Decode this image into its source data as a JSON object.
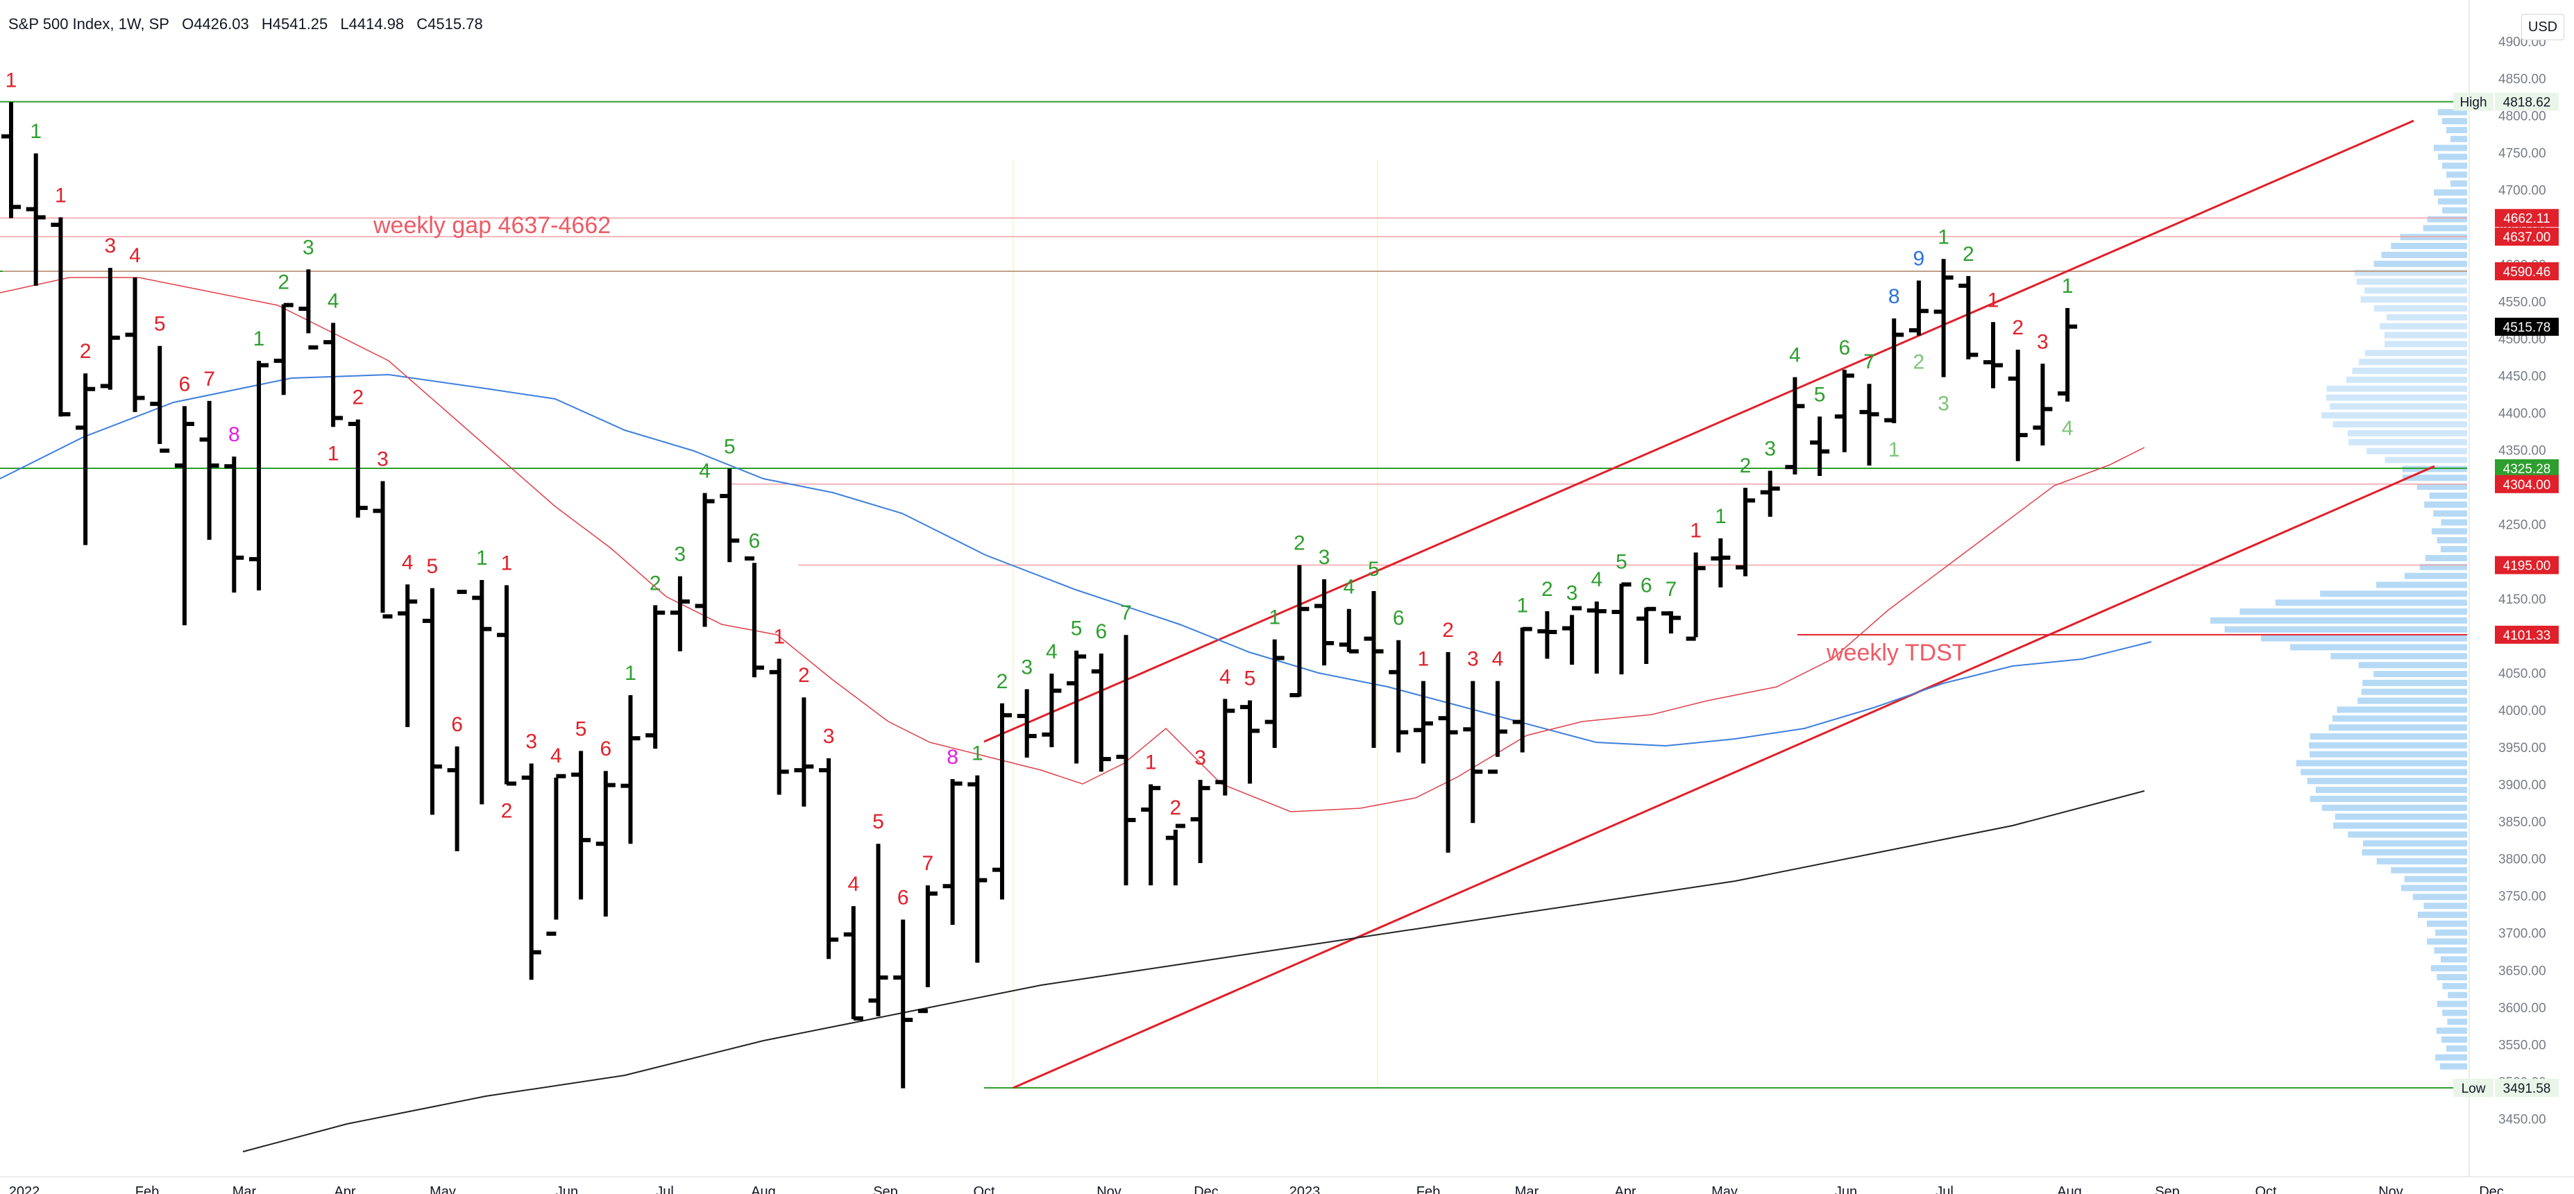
{
  "header": {
    "symbol": "S&P 500 Index, 1W, SP",
    "open": "O4426.03",
    "high": "H4541.25",
    "low": "L4414.98",
    "close": "C4515.78"
  },
  "currency_button": "USD",
  "chart_data": {
    "type": "ohlc",
    "title": "S&P 500 Index, 1W, SP",
    "ylim": [
      3400,
      4900
    ],
    "y_ticks": [
      3450,
      3500,
      3550,
      3600,
      3650,
      3700,
      3750,
      3800,
      3850,
      3900,
      3950,
      4000,
      4050,
      4100,
      4150,
      4200,
      4250,
      4300,
      4350,
      4400,
      4450,
      4500,
      4550,
      4600,
      4650,
      4700,
      4750,
      4800,
      4850,
      4900
    ],
    "x_ticks": [
      "2022",
      "Feb",
      "Mar",
      "Apr",
      "May",
      "Jun",
      "Jul",
      "Aug",
      "Sep",
      "Oct",
      "Nov",
      "Dec",
      "2023",
      "Feb",
      "Mar",
      "Apr",
      "May",
      "Jun",
      "Jul",
      "Aug",
      "Sep",
      "Oct",
      "Nov",
      "Dec"
    ],
    "bars": [
      [
        4772,
        4818,
        4662,
        4677
      ],
      [
        4674,
        4749,
        4571,
        4663
      ],
      [
        4653,
        4663,
        4395,
        4398
      ],
      [
        4380,
        4453,
        4222,
        4432
      ],
      [
        4436,
        4595,
        4431,
        4501
      ],
      [
        4505,
        4582,
        4401,
        4420
      ],
      [
        4412,
        4490,
        4358,
        4349
      ],
      [
        4329,
        4409,
        4114,
        4385
      ],
      [
        4364,
        4416,
        4229,
        4329
      ],
      [
        4328,
        4341,
        4158,
        4205
      ],
      [
        4203,
        4470,
        4161,
        4464
      ],
      [
        4470,
        4546,
        4424,
        4545
      ],
      [
        4540,
        4593,
        4507,
        4488
      ],
      [
        4495,
        4521,
        4381,
        4393
      ],
      [
        4385,
        4391,
        4259,
        4272
      ],
      [
        4268,
        4308,
        4131,
        4126
      ],
      [
        4130,
        4169,
        3977,
        4146
      ],
      [
        4120,
        4164,
        3859,
        3924
      ],
      [
        3919,
        3951,
        3810,
        4159
      ],
      [
        4151,
        4175,
        3873,
        4109
      ],
      [
        4101,
        4168,
        3900,
        3901
      ],
      [
        3909,
        3928,
        3637,
        3674
      ],
      [
        3699,
        3909,
        3718,
        3911
      ],
      [
        3913,
        3945,
        3745,
        3825
      ],
      [
        3820,
        3918,
        3722,
        3899
      ],
      [
        3898,
        4020,
        3820,
        3962
      ],
      [
        3966,
        4141,
        3948,
        4131
      ],
      [
        4131,
        4180,
        4079,
        4146
      ],
      [
        4140,
        4292,
        4112,
        4281
      ],
      [
        4288,
        4325,
        4199,
        4228
      ],
      [
        4204,
        4198,
        4044,
        4057
      ],
      [
        4051,
        4069,
        3886,
        3917
      ],
      [
        3919,
        4017,
        3870,
        3924
      ],
      [
        3919,
        3935,
        3665,
        3691
      ],
      [
        3698,
        3736,
        3584,
        3585
      ],
      [
        3609,
        3820,
        3588,
        3640
      ],
      [
        3640,
        3718,
        3491,
        3583
      ],
      [
        3595,
        3764,
        3627,
        3753
      ],
      [
        3763,
        3907,
        3711,
        3901
      ],
      [
        3900,
        3912,
        3660,
        3771
      ],
      [
        3785,
        4009,
        3745,
        3993
      ],
      [
        3992,
        4028,
        3936,
        3965
      ],
      [
        3967,
        4049,
        3950,
        4026
      ],
      [
        4036,
        4080,
        3928,
        4072
      ],
      [
        4052,
        4076,
        3917,
        3934
      ],
      [
        3937,
        4101,
        3764,
        3852
      ],
      [
        3866,
        3900,
        3764,
        3895
      ],
      [
        3828,
        3839,
        3764,
        3844
      ],
      [
        3853,
        3906,
        3794,
        3895
      ],
      [
        3903,
        4015,
        3885,
        3999
      ],
      [
        4004,
        4013,
        3901,
        3972
      ],
      [
        3984,
        4095,
        3949,
        4070
      ],
      [
        4020,
        4195,
        4018,
        4136
      ],
      [
        4140,
        4176,
        4060,
        4090
      ],
      [
        4088,
        4136,
        4078,
        4079
      ],
      [
        4096,
        4160,
        3949,
        4079
      ],
      [
        4051,
        4094,
        3943,
        3970
      ],
      [
        3973,
        4039,
        3928,
        3982
      ],
      [
        3989,
        4078,
        3808,
        3970
      ],
      [
        3974,
        4039,
        3848,
        3917
      ],
      [
        3917,
        4039,
        3937,
        3971
      ],
      [
        3984,
        4111,
        3943,
        4109
      ],
      [
        4106,
        4133,
        4069,
        4105
      ],
      [
        4110,
        4128,
        4061,
        4137
      ],
      [
        4134,
        4146,
        4049,
        4133
      ],
      [
        4132,
        4170,
        4048,
        4169
      ],
      [
        4123,
        4138,
        4062,
        4136
      ],
      [
        4130,
        4133,
        4103,
        4124
      ],
      [
        4096,
        4212,
        4098,
        4191
      ],
      [
        4204,
        4231,
        4165,
        4205
      ],
      [
        4192,
        4299,
        4180,
        4282
      ],
      [
        4293,
        4322,
        4260,
        4298
      ],
      [
        4327,
        4448,
        4317,
        4409
      ],
      [
        4360,
        4395,
        4315,
        4348
      ],
      [
        4395,
        4458,
        4347,
        4450
      ],
      [
        4401,
        4439,
        4329,
        4398
      ],
      [
        4390,
        4527,
        4386,
        4505
      ],
      [
        4511,
        4578,
        4504,
        4537
      ],
      [
        4536,
        4607,
        4448,
        4582
      ],
      [
        4571,
        4584,
        4472,
        4478
      ],
      [
        4468,
        4522,
        4433,
        4464
      ],
      [
        4446,
        4485,
        4335,
        4370
      ],
      [
        4380,
        4466,
        4356,
        4405
      ],
      [
        4426,
        4541,
        4415,
        4516
      ]
    ],
    "series": [
      {
        "name": "",
        "values": []
      }
    ],
    "price_labels": [
      {
        "label": "High",
        "value": 4818.62
      },
      {
        "label": "",
        "value": 4662.11
      },
      {
        "label": "",
        "value": 4637.0
      },
      {
        "label": "",
        "value": 4590.46
      },
      {
        "label": "",
        "value": 4515.78
      },
      {
        "label": "",
        "value": 4325.28
      },
      {
        "label": "",
        "value": 4304.0
      },
      {
        "label": "",
        "value": 4195.0
      },
      {
        "label": "",
        "value": 4101.33
      },
      {
        "label": "Low",
        "value": 3491.58
      }
    ],
    "annotations": [
      {
        "text": "weekly gap 4637-4662"
      },
      {
        "text": "weekly TDST"
      }
    ],
    "td_counts": [
      {
        "bar": 0,
        "above": true,
        "text": "1",
        "c": "red"
      },
      {
        "bar": 1,
        "above": true,
        "text": "1",
        "c": "green"
      },
      {
        "bar": 2,
        "above": true,
        "text": "1",
        "c": "red"
      },
      {
        "bar": 3,
        "above": true,
        "text": "2",
        "c": "red"
      },
      {
        "bar": 4,
        "above": true,
        "text": "3",
        "c": "red"
      },
      {
        "bar": 5,
        "above": true,
        "text": "4",
        "c": "red"
      },
      {
        "bar": 6,
        "above": true,
        "text": "5",
        "c": "red"
      },
      {
        "bar": 7,
        "above": true,
        "text": "6",
        "c": "red"
      },
      {
        "bar": 8,
        "above": true,
        "text": "7",
        "c": "red"
      },
      {
        "bar": 9,
        "above": true,
        "text": "8",
        "c": "magenta"
      },
      {
        "bar": 10,
        "above": true,
        "text": "1",
        "c": "green"
      },
      {
        "bar": 11,
        "above": true,
        "text": "2",
        "c": "green"
      },
      {
        "bar": 12,
        "above": true,
        "text": "3",
        "c": "green"
      },
      {
        "bar": 13,
        "above": true,
        "text": "4",
        "c": "green"
      },
      {
        "bar": 13,
        "above": false,
        "text": "1",
        "c": "red"
      },
      {
        "bar": 14,
        "above": true,
        "text": "2",
        "c": "red"
      },
      {
        "bar": 15,
        "above": true,
        "text": "3",
        "c": "red"
      },
      {
        "bar": 16,
        "above": true,
        "text": "4",
        "c": "red"
      },
      {
        "bar": 17,
        "above": true,
        "text": "5",
        "c": "red"
      },
      {
        "bar": 18,
        "above": true,
        "text": "6",
        "c": "red"
      },
      {
        "bar": 19,
        "above": true,
        "text": "1",
        "c": "green"
      },
      {
        "bar": 20,
        "above": true,
        "text": "1",
        "c": "red"
      },
      {
        "bar": 20,
        "above": false,
        "text": "2",
        "c": "red"
      },
      {
        "bar": 21,
        "above": true,
        "text": "3",
        "c": "red"
      },
      {
        "bar": 22,
        "above": true,
        "text": "4",
        "c": "red"
      },
      {
        "bar": 23,
        "above": true,
        "text": "5",
        "c": "red"
      },
      {
        "bar": 24,
        "above": true,
        "text": "6",
        "c": "red"
      },
      {
        "bar": 25,
        "above": true,
        "text": "1",
        "c": "green"
      },
      {
        "bar": 26,
        "above": true,
        "text": "2",
        "c": "green"
      },
      {
        "bar": 27,
        "above": true,
        "text": "3",
        "c": "green"
      },
      {
        "bar": 28,
        "above": true,
        "text": "4",
        "c": "green"
      },
      {
        "bar": 29,
        "above": true,
        "text": "5",
        "c": "green"
      },
      {
        "bar": 30,
        "above": true,
        "text": "6",
        "c": "green"
      },
      {
        "bar": 31,
        "above": true,
        "text": "1",
        "c": "red"
      },
      {
        "bar": 32,
        "above": true,
        "text": "2",
        "c": "red"
      },
      {
        "bar": 33,
        "above": true,
        "text": "3",
        "c": "red"
      },
      {
        "bar": 34,
        "above": true,
        "text": "4",
        "c": "red"
      },
      {
        "bar": 35,
        "above": true,
        "text": "5",
        "c": "red"
      },
      {
        "bar": 36,
        "above": true,
        "text": "6",
        "c": "red"
      },
      {
        "bar": 37,
        "above": true,
        "text": "7",
        "c": "red"
      },
      {
        "bar": 38,
        "above": true,
        "text": "8",
        "c": "magenta"
      },
      {
        "bar": 39,
        "above": true,
        "text": "1",
        "c": "green"
      },
      {
        "bar": 40,
        "above": true,
        "text": "2",
        "c": "green"
      },
      {
        "bar": 41,
        "above": true,
        "text": "3",
        "c": "green"
      },
      {
        "bar": 42,
        "above": true,
        "text": "4",
        "c": "green"
      },
      {
        "bar": 43,
        "above": true,
        "text": "5",
        "c": "green"
      },
      {
        "bar": 44,
        "above": true,
        "text": "6",
        "c": "green"
      },
      {
        "bar": 45,
        "above": true,
        "text": "7",
        "c": "green"
      },
      {
        "bar": 46,
        "above": true,
        "text": "1",
        "c": "red"
      },
      {
        "bar": 47,
        "above": true,
        "text": "2",
        "c": "red"
      },
      {
        "bar": 48,
        "above": true,
        "text": "3",
        "c": "red"
      },
      {
        "bar": 49,
        "above": true,
        "text": "4",
        "c": "red"
      },
      {
        "bar": 50,
        "above": true,
        "text": "5",
        "c": "red"
      },
      {
        "bar": 51,
        "above": true,
        "text": "1",
        "c": "green"
      },
      {
        "bar": 52,
        "above": true,
        "text": "2",
        "c": "green"
      },
      {
        "bar": 53,
        "above": true,
        "text": "3",
        "c": "green"
      },
      {
        "bar": 54,
        "above": true,
        "text": "4",
        "c": "green"
      },
      {
        "bar": 55,
        "above": true,
        "text": "5",
        "c": "green"
      },
      {
        "bar": 56,
        "above": true,
        "text": "6",
        "c": "green"
      },
      {
        "bar": 57,
        "above": true,
        "text": "1",
        "c": "red"
      },
      {
        "bar": 58,
        "above": true,
        "text": "2",
        "c": "red"
      },
      {
        "bar": 59,
        "above": true,
        "text": "3",
        "c": "red"
      },
      {
        "bar": 60,
        "above": true,
        "text": "4",
        "c": "red"
      },
      {
        "bar": 61,
        "above": true,
        "text": "1",
        "c": "green"
      },
      {
        "bar": 62,
        "above": true,
        "text": "2",
        "c": "green"
      },
      {
        "bar": 63,
        "above": true,
        "text": "3",
        "c": "green"
      },
      {
        "bar": 64,
        "above": true,
        "text": "4",
        "c": "green"
      },
      {
        "bar": 65,
        "above": true,
        "text": "5",
        "c": "green"
      },
      {
        "bar": 66,
        "above": true,
        "text": "6",
        "c": "green"
      },
      {
        "bar": 67,
        "above": true,
        "text": "7",
        "c": "green"
      },
      {
        "bar": 68,
        "above": true,
        "text": "1",
        "c": "red"
      },
      {
        "bar": 69,
        "above": true,
        "text": "1",
        "c": "green"
      },
      {
        "bar": 70,
        "above": true,
        "text": "2",
        "c": "green"
      },
      {
        "bar": 71,
        "above": true,
        "text": "3",
        "c": "green"
      },
      {
        "bar": 72,
        "above": true,
        "text": "4",
        "c": "green"
      },
      {
        "bar": 73,
        "above": true,
        "text": "5",
        "c": "green"
      },
      {
        "bar": 74,
        "above": true,
        "text": "6",
        "c": "green"
      },
      {
        "bar": 75,
        "above": true,
        "text": "7",
        "c": "green"
      },
      {
        "bar": 76,
        "above": true,
        "text": "8",
        "c": "blue"
      },
      {
        "bar": 77,
        "above": true,
        "text": "9",
        "c": "blue"
      },
      {
        "bar": 76,
        "above": false,
        "text": "1",
        "c": "lightgreen"
      },
      {
        "bar": 77,
        "above": false,
        "text": "2",
        "c": "lightgreen"
      },
      {
        "bar": 78,
        "above": false,
        "text": "3",
        "c": "lightgreen"
      },
      {
        "bar": 78,
        "above": true,
        "text": "1",
        "c": "green"
      },
      {
        "bar": 79,
        "above": true,
        "text": "2",
        "c": "green"
      },
      {
        "bar": 80,
        "above": true,
        "text": "1",
        "c": "red"
      },
      {
        "bar": 81,
        "above": true,
        "text": "2",
        "c": "red"
      },
      {
        "bar": 82,
        "above": true,
        "text": "3",
        "c": "red"
      },
      {
        "bar": 83,
        "above": true,
        "text": "1",
        "c": "green"
      },
      {
        "bar": 83,
        "above": false,
        "text": "4",
        "c": "lightgreen"
      }
    ]
  },
  "colors": {
    "bar": "#000000",
    "green": "#2e9e2e",
    "lightgreen": "#7cc576",
    "red": "#e0202a",
    "magenta": "#e020e0",
    "blue": "#2a72d8",
    "ma_blue": "#3d7fdc",
    "ma_red": "#e0404a",
    "ma_black": "#222222",
    "vp": "#a9d3f5"
  }
}
